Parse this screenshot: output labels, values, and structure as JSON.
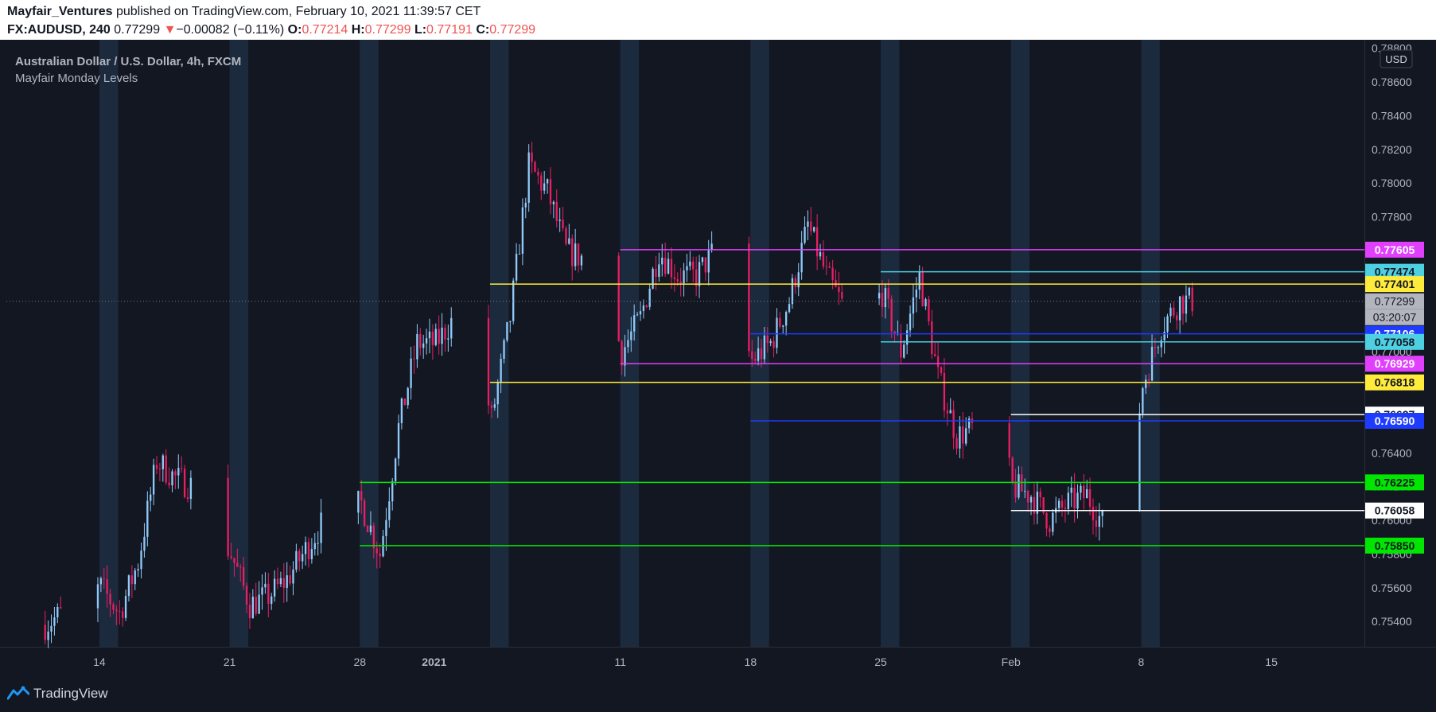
{
  "header": {
    "author": "Mayfair_Ventures",
    "published_text": "published on TradingView.com, February 10, 2021 11:39:57 CET",
    "symbol": "FX:AUDUSD, 240",
    "last": "0.77299",
    "arrow": "▼",
    "change": "−0.00082 (−0.11%)",
    "o_label": "O:",
    "o_value": "0.77214",
    "h_label": "H:",
    "h_value": "0.77299",
    "l_label": "L:",
    "l_value": "0.77191",
    "c_label": "C:",
    "c_value": "0.77299"
  },
  "legend": {
    "title": "Australian Dollar / U.S. Dollar, 4h, FXCM",
    "indicator": "Mayfair Monday Levels"
  },
  "footer": {
    "brand": "TradingView"
  },
  "colors": {
    "background": "#131722",
    "up": "#90caf9",
    "down": "#e91e63",
    "monday_band": "#1c2a3e",
    "text": "#d1d4dc"
  },
  "chart_data": {
    "type": "candlestick",
    "currency": "USD",
    "ylim": [
      0.7525,
      0.7885
    ],
    "y_ticks": [
      "0.75400",
      "0.75600",
      "0.75800",
      "0.76000",
      "0.76200",
      "0.76400",
      "0.76600",
      "0.76800",
      "0.77000",
      "0.77200",
      "0.77400",
      "0.77600",
      "0.77800",
      "0.78000",
      "0.78200",
      "0.78400",
      "0.78600",
      "0.78800"
    ],
    "x_range": [
      "2020-12-09",
      "2021-02-20"
    ],
    "x_ticks": [
      {
        "date": "2020-12-14",
        "label": "14"
      },
      {
        "date": "2020-12-21",
        "label": "21"
      },
      {
        "date": "2020-12-28",
        "label": "28"
      },
      {
        "date": "2021-01-01",
        "label": "2021"
      },
      {
        "date": "2021-01-11",
        "label": "11"
      },
      {
        "date": "2021-01-18",
        "label": "18"
      },
      {
        "date": "2021-01-25",
        "label": "25"
      },
      {
        "date": "2021-02-01",
        "label": "Feb"
      },
      {
        "date": "2021-02-08",
        "label": "8"
      },
      {
        "date": "2021-02-15",
        "label": "15"
      }
    ],
    "monday_bands": [
      "2020-12-14",
      "2020-12-21",
      "2020-12-28",
      "2021-01-04",
      "2021-01-11",
      "2021-01-18",
      "2021-01-25",
      "2021-02-01",
      "2021-02-08"
    ],
    "levels": [
      {
        "price": 0.77605,
        "label": "0.77605",
        "color": "#e040fb",
        "text": "#ffffff",
        "start": "2021-01-11"
      },
      {
        "price": 0.77474,
        "label": "0.77474",
        "color": "#4dd0e1",
        "text": "#131722",
        "start": "2021-01-25"
      },
      {
        "price": 0.77401,
        "label": "0.77401",
        "color": "#ffeb3b",
        "text": "#131722",
        "start": "2021-01-04"
      },
      {
        "price": 0.77106,
        "label": "0.77106",
        "color": "#1e3cff",
        "text": "#ffffff",
        "start": "2021-01-18"
      },
      {
        "price": 0.77058,
        "label": "0.77058",
        "color": "#4dd0e1",
        "text": "#131722",
        "start": "2021-01-25"
      },
      {
        "price": 0.76929,
        "label": "0.76929",
        "color": "#e040fb",
        "text": "#ffffff",
        "start": "2021-01-11"
      },
      {
        "price": 0.76818,
        "label": "0.76818",
        "color": "#ffeb3b",
        "text": "#131722",
        "start": "2021-01-04"
      },
      {
        "price": 0.76627,
        "label": "0.76627",
        "color": "#ffffff",
        "text": "#131722",
        "start": "2021-02-01"
      },
      {
        "price": 0.7659,
        "label": "0.76590",
        "color": "#1e3cff",
        "text": "#ffffff",
        "start": "2021-01-18"
      },
      {
        "price": 0.76225,
        "label": "0.76225",
        "color": "#00e600",
        "text": "#131722",
        "start": "2020-12-28"
      },
      {
        "price": 0.76058,
        "label": "0.76058",
        "color": "#ffffff",
        "text": "#131722",
        "start": "2021-02-01"
      },
      {
        "price": 0.7585,
        "label": "0.75850",
        "color": "#00e600",
        "text": "#131722",
        "start": "2020-12-28"
      }
    ],
    "current_price": {
      "price": 0.77299,
      "label": "0.77299"
    },
    "countdown": "03:20:07",
    "candles_from": "2020-12-11",
    "candles_per_day": 6,
    "close_path": [
      [
        "2020-12-11",
        0.7538
      ],
      [
        "2020-12-14",
        0.756
      ],
      [
        "2020-12-15",
        0.7545
      ],
      [
        "2020-12-16",
        0.7575
      ],
      [
        "2020-12-17",
        0.7635
      ],
      [
        "2020-12-18",
        0.7625
      ],
      [
        "2020-12-19",
        0.762
      ],
      [
        "2020-12-21",
        0.758
      ],
      [
        "2020-12-22",
        0.755
      ],
      [
        "2020-12-23",
        0.7555
      ],
      [
        "2020-12-24",
        0.7565
      ],
      [
        "2020-12-26",
        0.76
      ],
      [
        "2020-12-28",
        0.761
      ],
      [
        "2020-12-29",
        0.758
      ],
      [
        "2020-12-30",
        0.7655
      ],
      [
        "2020-12-31",
        0.7705
      ],
      [
        "2021-01-01",
        0.7705
      ],
      [
        "2021-01-02",
        0.772
      ],
      [
        "2021-01-03",
        0.7715
      ],
      [
        "2021-01-04",
        0.766
      ],
      [
        "2021-01-05",
        0.772
      ],
      [
        "2021-01-06",
        0.781
      ],
      [
        "2021-01-07",
        0.7795
      ],
      [
        "2021-01-08",
        0.776
      ],
      [
        "2021-01-09",
        0.7755
      ],
      [
        "2021-01-10",
        0.774
      ],
      [
        "2021-01-11",
        0.77
      ],
      [
        "2021-01-12",
        0.772
      ],
      [
        "2021-01-13",
        0.776
      ],
      [
        "2021-01-14",
        0.7745
      ],
      [
        "2021-01-15",
        0.7745
      ],
      [
        "2021-01-16",
        0.776
      ],
      [
        "2021-01-17",
        0.772
      ],
      [
        "2021-01-18",
        0.7695
      ],
      [
        "2021-01-19",
        0.7705
      ],
      [
        "2021-01-20",
        0.773
      ],
      [
        "2021-01-21",
        0.7775
      ],
      [
        "2021-01-22",
        0.7745
      ],
      [
        "2021-01-23",
        0.7725
      ],
      [
        "2021-01-24",
        0.772
      ],
      [
        "2021-01-25",
        0.7735
      ],
      [
        "2021-01-26",
        0.77
      ],
      [
        "2021-01-27",
        0.7745
      ],
      [
        "2021-01-28",
        0.7685
      ],
      [
        "2021-01-29",
        0.765
      ],
      [
        "2021-01-30",
        0.7655
      ],
      [
        "2021-01-31",
        0.767
      ],
      [
        "2021-02-01",
        0.762
      ],
      [
        "2021-02-02",
        0.7615
      ],
      [
        "2021-02-03",
        0.76
      ],
      [
        "2021-02-04",
        0.761
      ],
      [
        "2021-02-05",
        0.7615
      ],
      [
        "2021-02-06",
        0.7595
      ],
      [
        "2021-02-07",
        0.7595
      ],
      [
        "2021-02-08",
        0.768
      ],
      [
        "2021-02-09",
        0.7715
      ],
      [
        "2021-02-10",
        0.773
      ],
      [
        "2021-02-10T16",
        0.773
      ]
    ]
  }
}
